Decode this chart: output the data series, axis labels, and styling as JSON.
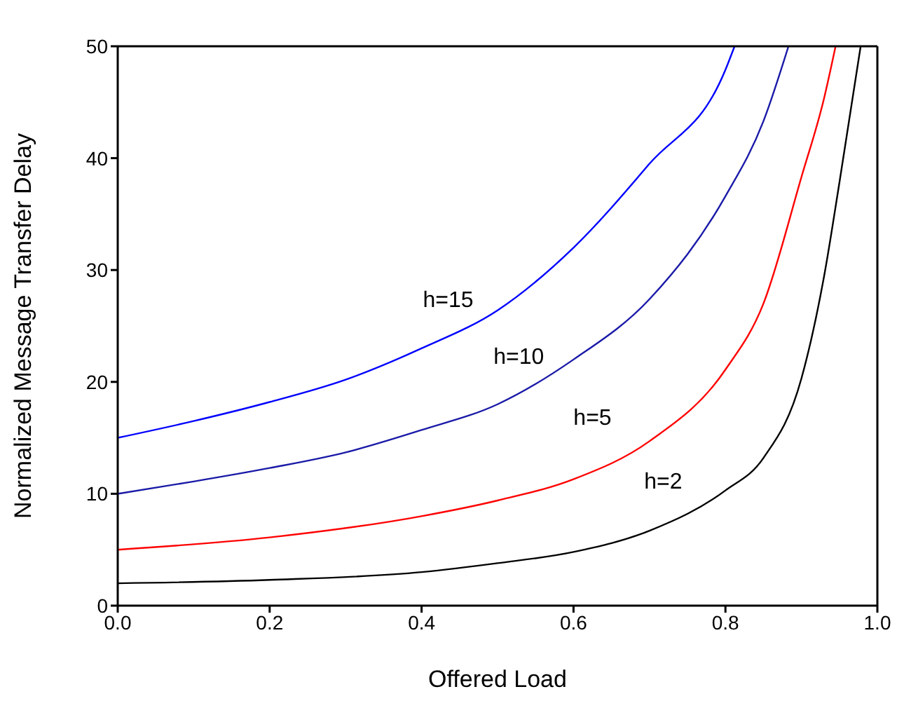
{
  "chart_data": {
    "type": "line",
    "xlabel": "Offered Load",
    "ylabel": "Normalized Message Transfer Delay",
    "xlim": [
      0,
      1
    ],
    "xticks": [
      {
        "value": 0,
        "label": "0.0"
      },
      0.2,
      0.4,
      0.6,
      0.8,
      {
        "value": 1,
        "label": "1.0"
      }
    ],
    "ylim": [
      0,
      50
    ],
    "yticks": [
      0,
      10,
      20,
      30,
      40,
      50
    ],
    "grid": false,
    "marker": "none",
    "line_style": "solid",
    "series": [
      {
        "name": "h=15",
        "color": "#0000ff",
        "x": [
          0,
          0.1,
          0.2,
          0.3,
          0.4,
          0.5,
          0.6,
          0.7,
          0.8,
          0.812
        ],
        "values": [
          15,
          16.5,
          18.2,
          20.2,
          23,
          26.4,
          32,
          39.5,
          47.9,
          50
        ]
      },
      {
        "name": "h=10",
        "color": "#1a1aa8",
        "x": [
          0,
          0.1,
          0.2,
          0.3,
          0.4,
          0.5,
          0.6,
          0.7,
          0.8,
          0.85,
          0.883
        ],
        "values": [
          10,
          11.1,
          12.3,
          13.7,
          15.7,
          18,
          22,
          27.4,
          36.6,
          43.3,
          50
        ]
      },
      {
        "name": "h=5",
        "color": "#ff0000",
        "x": [
          0,
          0.2,
          0.4,
          0.5,
          0.6,
          0.7,
          0.8,
          0.85,
          0.9,
          0.93,
          0.945
        ],
        "values": [
          5,
          6.1,
          8,
          9.4,
          11.3,
          14.7,
          21.1,
          27,
          38.3,
          45.4,
          50
        ]
      },
      {
        "name": "h=2",
        "color": "#000000",
        "x": [
          0,
          0.2,
          0.4,
          0.5,
          0.6,
          0.7,
          0.8,
          0.85,
          0.9,
          0.93,
          0.95,
          0.978
        ],
        "values": [
          2,
          2.3,
          3,
          3.8,
          4.8,
          6.7,
          10.3,
          13.2,
          20.3,
          29.5,
          37.8,
          50
        ]
      }
    ]
  }
}
